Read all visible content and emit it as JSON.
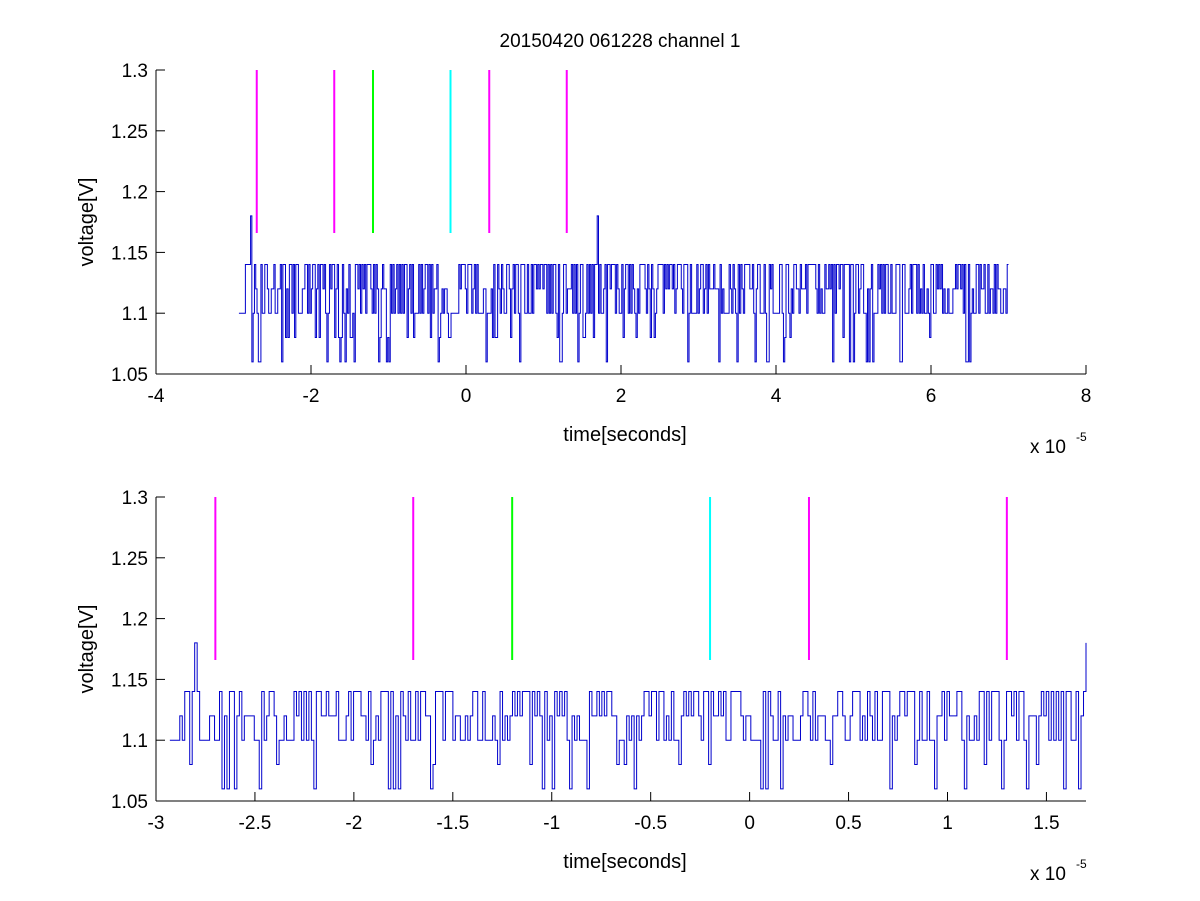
{
  "figure": {
    "title": "20150420 061228 channel 1"
  },
  "chart_data": [
    {
      "type": "line",
      "title": "20150420 061228 channel 1",
      "xlabel": "time[seconds]",
      "ylabel": "voltage[V]",
      "x_multiplier_label": "x 10",
      "x_multiplier_exponent": "-5",
      "xlim": [
        -4,
        8
      ],
      "ylim": [
        1.05,
        1.3
      ],
      "x_ticks": [
        -4,
        -2,
        0,
        2,
        4,
        6,
        8
      ],
      "x_tick_labels": [
        "-4",
        "-2",
        "0",
        "2",
        "4",
        "6",
        "8"
      ],
      "y_ticks": [
        1.05,
        1.1,
        1.15,
        1.2,
        1.25,
        1.3
      ],
      "y_tick_labels": [
        "1.05",
        "1.1",
        "1.15",
        "1.2",
        "1.25",
        "1.3"
      ],
      "grid": false,
      "series": [
        {
          "color": "#0000cc",
          "x_range": [
            -2.93,
            7.0
          ],
          "baseline": 1.1,
          "levels": [
            1.06,
            1.08,
            1.1,
            1.12,
            1.14,
            1.18
          ],
          "spikes": [
            {
              "x": -2.78,
              "y": 1.18
            },
            {
              "x": 1.7,
              "y": 1.18
            }
          ]
        }
      ],
      "markers": [
        {
          "x": -2.7,
          "y_from": 1.166,
          "y_to": 1.3,
          "color": "#ff00ff"
        },
        {
          "x": -1.7,
          "y_from": 1.166,
          "y_to": 1.3,
          "color": "#ff00ff"
        },
        {
          "x": -1.2,
          "y_from": 1.166,
          "y_to": 1.3,
          "color": "#00ff00"
        },
        {
          "x": -0.2,
          "y_from": 1.166,
          "y_to": 1.3,
          "color": "#00ffff"
        },
        {
          "x": 0.3,
          "y_from": 1.166,
          "y_to": 1.3,
          "color": "#ff00ff"
        },
        {
          "x": 1.3,
          "y_from": 1.166,
          "y_to": 1.3,
          "color": "#ff00ff"
        }
      ]
    },
    {
      "type": "line",
      "xlabel": "time[seconds]",
      "ylabel": "voltage[V]",
      "x_multiplier_label": "x 10",
      "x_multiplier_exponent": "-5",
      "xlim": [
        -3.0,
        1.7
      ],
      "ylim": [
        1.05,
        1.3
      ],
      "x_ticks": [
        -3,
        -2.5,
        -2,
        -1.5,
        -1,
        -0.5,
        0,
        0.5,
        1,
        1.5
      ],
      "x_tick_labels": [
        "-3",
        "-2.5",
        "-2",
        "-1.5",
        "-1",
        "-0.5",
        "0",
        "0.5",
        "1",
        "1.5"
      ],
      "y_ticks": [
        1.05,
        1.1,
        1.15,
        1.2,
        1.25,
        1.3
      ],
      "y_tick_labels": [
        "1.05",
        "1.1",
        "1.15",
        "1.2",
        "1.25",
        "1.3"
      ],
      "grid": false,
      "series": [
        {
          "color": "#0000cc",
          "x_range": [
            -2.93,
            1.7
          ],
          "baseline": 1.1,
          "levels": [
            1.06,
            1.08,
            1.1,
            1.12,
            1.14,
            1.18
          ],
          "spikes": [
            {
              "x": -2.8,
              "y": 1.18
            },
            {
              "x": 1.7,
              "y": 1.18
            }
          ]
        }
      ],
      "markers": [
        {
          "x": -2.7,
          "y_from": 1.166,
          "y_to": 1.3,
          "color": "#ff00ff"
        },
        {
          "x": -1.7,
          "y_from": 1.166,
          "y_to": 1.3,
          "color": "#ff00ff"
        },
        {
          "x": -1.2,
          "y_from": 1.166,
          "y_to": 1.3,
          "color": "#00ff00"
        },
        {
          "x": -0.2,
          "y_from": 1.166,
          "y_to": 1.3,
          "color": "#00ffff"
        },
        {
          "x": 0.3,
          "y_from": 1.166,
          "y_to": 1.3,
          "color": "#ff00ff"
        },
        {
          "x": 1.3,
          "y_from": 1.166,
          "y_to": 1.3,
          "color": "#ff00ff"
        }
      ]
    }
  ]
}
